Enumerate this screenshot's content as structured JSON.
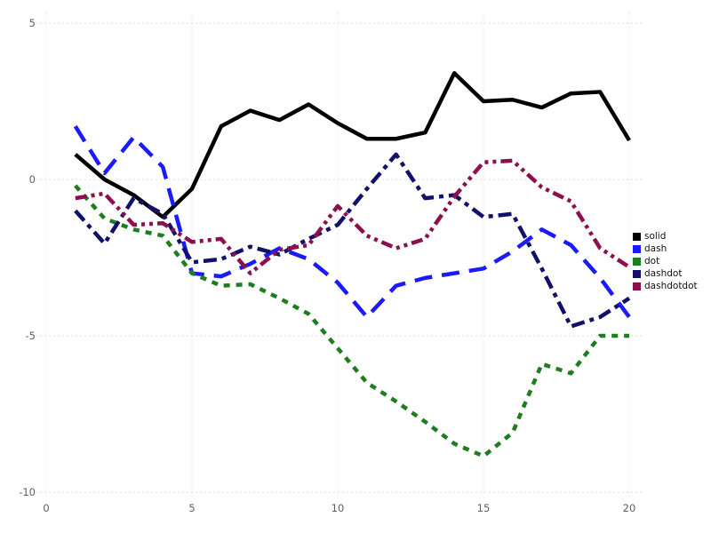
{
  "chart_data": {
    "type": "line",
    "title": "",
    "xlabel": "",
    "ylabel": "",
    "x": [
      1,
      2,
      3,
      4,
      5,
      6,
      7,
      8,
      9,
      10,
      11,
      12,
      13,
      14,
      15,
      16,
      17,
      18,
      19,
      20
    ],
    "series": [
      {
        "name": "solid",
        "color": "#000000",
        "dash_style": "solid",
        "values": [
          0.8,
          0.0,
          -0.5,
          -1.2,
          -0.3,
          1.7,
          2.2,
          1.9,
          2.4,
          1.8,
          1.3,
          1.3,
          1.5,
          3.4,
          2.5,
          2.55,
          2.3,
          2.75,
          2.8,
          1.25
        ]
      },
      {
        "name": "dash",
        "color": "#1a1aff",
        "dash_style": "dash",
        "values": [
          1.7,
          0.2,
          1.35,
          0.4,
          -3.0,
          -3.1,
          -2.7,
          -2.2,
          -2.55,
          -3.3,
          -4.4,
          -3.4,
          -3.15,
          -3.0,
          -2.85,
          -2.3,
          -1.6,
          -2.1,
          -3.15,
          -4.4
        ]
      },
      {
        "name": "dot",
        "color": "#1e7d1e",
        "dash_style": "dot",
        "values": [
          -0.2,
          -1.25,
          -1.6,
          -1.8,
          -3.0,
          -3.4,
          -3.35,
          -3.8,
          -4.3,
          -5.4,
          -6.5,
          -7.1,
          -7.75,
          -8.45,
          -8.85,
          -8.1,
          -5.9,
          -6.2,
          -5.0,
          -5.0
        ]
      },
      {
        "name": "dashdot",
        "color": "#11116b",
        "dash_style": "dashdot",
        "values": [
          -1.0,
          -2.05,
          -0.6,
          -1.1,
          -2.65,
          -2.55,
          -2.15,
          -2.4,
          -1.9,
          -1.45,
          -0.3,
          0.8,
          -0.6,
          -0.5,
          -1.2,
          -1.1,
          -2.85,
          -4.7,
          -4.4,
          -3.8
        ]
      },
      {
        "name": "dashdotdot",
        "color": "#8d0f4d",
        "dash_style": "dashdotdot",
        "values": [
          -0.6,
          -0.45,
          -1.45,
          -1.4,
          -2.0,
          -1.9,
          -3.0,
          -2.25,
          -2.1,
          -0.85,
          -1.8,
          -2.2,
          -1.9,
          -0.55,
          0.55,
          0.6,
          -0.25,
          -0.7,
          -2.2,
          -2.8
        ]
      }
    ],
    "x_ticks": [
      0,
      5,
      10,
      15,
      20
    ],
    "y_ticks": [
      -10,
      -5,
      0,
      5
    ],
    "xlim": [
      0,
      20
    ],
    "ylim": [
      -10,
      5
    ],
    "grid": true,
    "legend_position": "right",
    "legend_entries": [
      "solid",
      "dash",
      "dot",
      "dashdot",
      "dashdotdot"
    ]
  },
  "colors": {
    "background": "#ffffff",
    "grid": "#d9d9e3",
    "tick_label": "#5f5f66"
  }
}
